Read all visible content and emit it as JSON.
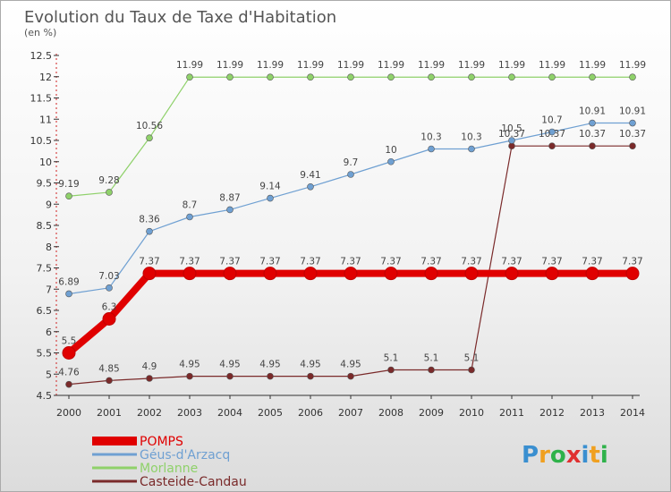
{
  "chart_data": {
    "type": "line",
    "title": "Evolution du Taux de Taxe d'Habitation",
    "subtitle": "(en %)",
    "ylim": [
      4.5,
      12.5
    ],
    "y_ticks": [
      "4.5",
      "5",
      "5.5",
      "6",
      "6.5",
      "7",
      "7.5",
      "8",
      "8.5",
      "9",
      "9.5",
      "10",
      "10.5",
      "11",
      "11.5",
      "12",
      "12.5"
    ],
    "x": [
      "2000",
      "2001",
      "2002",
      "2003",
      "2004",
      "2005",
      "2006",
      "2007",
      "2008",
      "2009",
      "2010",
      "2011",
      "2012",
      "2013",
      "2014"
    ],
    "grid": false,
    "legend_position": "bottom-left",
    "series": [
      {
        "name": "POMPS",
        "color": "#e00000",
        "values": [
          5.5,
          6.3,
          7.37,
          7.37,
          7.37,
          7.37,
          7.37,
          7.37,
          7.37,
          7.37,
          7.37,
          7.37,
          7.37,
          7.37,
          7.37
        ],
        "labels": [
          "5.5",
          "6.3",
          "7.37",
          "7.37",
          "7.37",
          "7.37",
          "7.37",
          "7.37",
          "7.37",
          "7.37",
          "7.37",
          "7.37",
          "7.37",
          "7.37",
          "7.37"
        ]
      },
      {
        "name": "Géus-d'Arzacq",
        "color": "#6fa0d2",
        "values": [
          6.89,
          7.03,
          8.36,
          8.7,
          8.87,
          9.14,
          9.41,
          9.7,
          10,
          10.3,
          10.3,
          10.5,
          10.7,
          10.91,
          10.91
        ],
        "labels": [
          "6.89",
          "7.03",
          "8.36",
          "8.7",
          "8.87",
          "9.14",
          "9.41",
          "9.7",
          "10",
          "10.3",
          "10.3",
          "10.5",
          "10.7",
          "10.91",
          "10.91"
        ]
      },
      {
        "name": "Morlanne",
        "color": "#8fd16a",
        "values": [
          9.19,
          9.28,
          10.56,
          11.99,
          11.99,
          11.99,
          11.99,
          11.99,
          11.99,
          11.99,
          11.99,
          11.99,
          11.99,
          11.99,
          11.99
        ],
        "labels": [
          "9.19",
          "9.28",
          "10.56",
          "11.99",
          "11.99",
          "11.99",
          "11.99",
          "11.99",
          "11.99",
          "11.99",
          "11.99",
          "11.99",
          "11.99",
          "11.99",
          "11.99"
        ]
      },
      {
        "name": "Casteide-Candau",
        "color": "#7a2a2a",
        "values": [
          4.76,
          4.85,
          4.9,
          4.95,
          4.95,
          4.95,
          4.95,
          4.95,
          5.1,
          5.1,
          5.1,
          10.37,
          10.37,
          10.37,
          10.37
        ],
        "labels": [
          "4.76",
          "4.85",
          "4.9",
          "4.95",
          "4.95",
          "4.95",
          "4.95",
          "4.95",
          "5.1",
          "5.1",
          "5.1",
          "10.37",
          "10.37",
          "10.37",
          "10.37"
        ]
      }
    ]
  },
  "logo": {
    "letters": [
      {
        "ch": "P",
        "color": "#3a8fd0"
      },
      {
        "ch": "r",
        "color": "#f0a020"
      },
      {
        "ch": "o",
        "color": "#2fb24a"
      },
      {
        "ch": "x",
        "color": "#e03030"
      },
      {
        "ch": "i",
        "color": "#3a8fd0"
      },
      {
        "ch": "t",
        "color": "#f0a020"
      },
      {
        "ch": "i",
        "color": "#2fb24a"
      }
    ]
  }
}
